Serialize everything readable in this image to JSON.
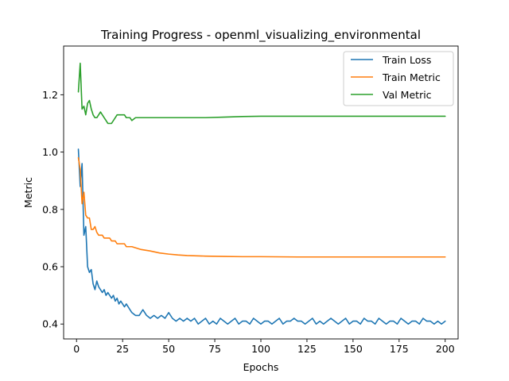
{
  "chart_data": {
    "type": "line",
    "title": "Training Progress - openml_visualizing_environmental",
    "xlabel": "Epochs",
    "ylabel": "Metric",
    "xlim": [
      -7,
      207
    ],
    "ylim": [
      0.348,
      1.37
    ],
    "xticks": [
      0,
      25,
      50,
      75,
      100,
      125,
      150,
      175,
      200
    ],
    "yticks": [
      0.4,
      0.6,
      0.8,
      1.0,
      1.2
    ],
    "ytick_labels": [
      "0.4",
      "0.6",
      "0.8",
      "1.0",
      "1.2"
    ],
    "grid": false,
    "legend_position": "top-right",
    "series": [
      {
        "name": "Train Loss",
        "color": "#1f77b4",
        "x": [
          1,
          2,
          3,
          4,
          5,
          6,
          7,
          8,
          9,
          10,
          11,
          12,
          13,
          14,
          15,
          16,
          17,
          18,
          19,
          20,
          21,
          22,
          23,
          24,
          25,
          26,
          27,
          28,
          29,
          30,
          32,
          34,
          36,
          38,
          40,
          42,
          44,
          46,
          48,
          50,
          52,
          54,
          56,
          58,
          60,
          62,
          64,
          66,
          68,
          70,
          72,
          74,
          76,
          78,
          80,
          82,
          84,
          86,
          88,
          90,
          92,
          94,
          96,
          98,
          100,
          102,
          104,
          106,
          108,
          110,
          112,
          114,
          116,
          118,
          120,
          122,
          124,
          126,
          128,
          130,
          132,
          134,
          136,
          138,
          140,
          142,
          144,
          146,
          148,
          150,
          152,
          154,
          156,
          158,
          160,
          162,
          164,
          166,
          168,
          170,
          172,
          174,
          176,
          178,
          180,
          182,
          184,
          186,
          188,
          190,
          192,
          194,
          196,
          198,
          200
        ],
        "values": [
          1.01,
          0.88,
          0.96,
          0.71,
          0.74,
          0.6,
          0.58,
          0.59,
          0.54,
          0.52,
          0.55,
          0.53,
          0.52,
          0.51,
          0.52,
          0.5,
          0.51,
          0.5,
          0.49,
          0.5,
          0.48,
          0.49,
          0.47,
          0.48,
          0.47,
          0.46,
          0.47,
          0.46,
          0.45,
          0.44,
          0.43,
          0.43,
          0.45,
          0.43,
          0.42,
          0.43,
          0.42,
          0.43,
          0.42,
          0.44,
          0.42,
          0.41,
          0.42,
          0.41,
          0.42,
          0.41,
          0.42,
          0.4,
          0.41,
          0.42,
          0.4,
          0.41,
          0.4,
          0.42,
          0.41,
          0.4,
          0.41,
          0.42,
          0.4,
          0.41,
          0.41,
          0.4,
          0.42,
          0.41,
          0.4,
          0.41,
          0.41,
          0.4,
          0.41,
          0.42,
          0.4,
          0.41,
          0.41,
          0.42,
          0.41,
          0.41,
          0.4,
          0.41,
          0.42,
          0.4,
          0.41,
          0.4,
          0.41,
          0.42,
          0.41,
          0.4,
          0.41,
          0.42,
          0.4,
          0.41,
          0.41,
          0.4,
          0.42,
          0.41,
          0.41,
          0.4,
          0.42,
          0.41,
          0.4,
          0.41,
          0.41,
          0.4,
          0.42,
          0.41,
          0.4,
          0.41,
          0.41,
          0.4,
          0.42,
          0.41,
          0.41,
          0.4,
          0.41,
          0.4,
          0.41
        ]
      },
      {
        "name": "Train Metric",
        "color": "#ff7f0e",
        "x": [
          1,
          2,
          3,
          4,
          5,
          6,
          7,
          8,
          9,
          10,
          11,
          12,
          13,
          14,
          15,
          16,
          17,
          18,
          19,
          20,
          21,
          22,
          23,
          24,
          25,
          26,
          27,
          28,
          29,
          30,
          35,
          40,
          45,
          50,
          55,
          60,
          70,
          80,
          90,
          100,
          120,
          140,
          160,
          180,
          200
        ],
        "values": [
          0.98,
          0.94,
          0.82,
          0.86,
          0.78,
          0.77,
          0.77,
          0.73,
          0.73,
          0.74,
          0.72,
          0.71,
          0.71,
          0.71,
          0.7,
          0.7,
          0.7,
          0.7,
          0.69,
          0.69,
          0.69,
          0.68,
          0.68,
          0.68,
          0.68,
          0.68,
          0.67,
          0.67,
          0.67,
          0.67,
          0.66,
          0.655,
          0.648,
          0.644,
          0.641,
          0.639,
          0.637,
          0.636,
          0.635,
          0.635,
          0.634,
          0.634,
          0.634,
          0.634,
          0.634
        ]
      },
      {
        "name": "Val Metric",
        "color": "#2ca02c",
        "x": [
          1,
          2,
          3,
          4,
          5,
          6,
          7,
          8,
          9,
          10,
          11,
          12,
          13,
          14,
          15,
          16,
          17,
          18,
          19,
          20,
          21,
          22,
          23,
          24,
          25,
          26,
          27,
          28,
          29,
          30,
          32,
          34,
          36,
          38,
          40,
          42,
          44,
          46,
          48,
          50,
          55,
          60,
          65,
          70,
          80,
          90,
          100,
          120,
          140,
          160,
          180,
          200
        ],
        "values": [
          1.21,
          1.31,
          1.15,
          1.16,
          1.13,
          1.17,
          1.18,
          1.15,
          1.13,
          1.12,
          1.12,
          1.13,
          1.14,
          1.13,
          1.12,
          1.11,
          1.1,
          1.1,
          1.1,
          1.11,
          1.12,
          1.13,
          1.13,
          1.13,
          1.13,
          1.13,
          1.12,
          1.12,
          1.12,
          1.11,
          1.12,
          1.12,
          1.12,
          1.12,
          1.12,
          1.12,
          1.12,
          1.12,
          1.12,
          1.12,
          1.12,
          1.12,
          1.12,
          1.12,
          1.122,
          1.124,
          1.125,
          1.125,
          1.125,
          1.125,
          1.125,
          1.125
        ]
      }
    ]
  }
}
